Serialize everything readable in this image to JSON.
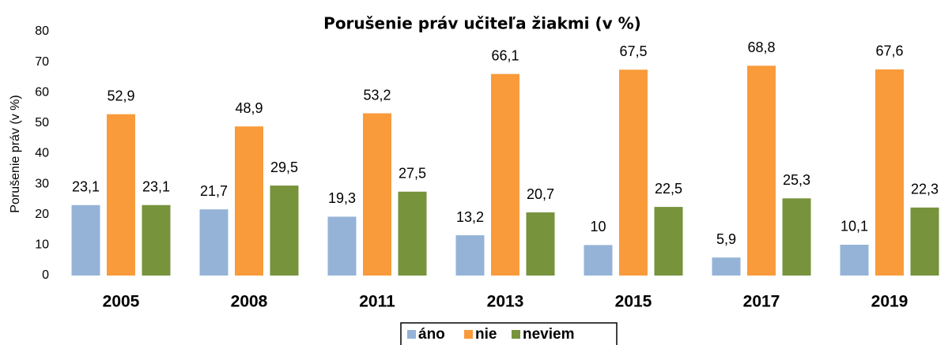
{
  "chart_data": {
    "type": "bar",
    "title": "Porušenie práv učiteľa žiakmi (v  %)",
    "y_label": "Porušenie práv (v  %)",
    "categories": [
      "2005",
      "2008",
      "2011",
      "2013",
      "2015",
      "2017",
      "2019"
    ],
    "series": [
      {
        "name": "áno",
        "color": "#95b3d7",
        "values": [
          23.1,
          21.7,
          19.3,
          13.2,
          10,
          5.9,
          10.1
        ],
        "value_labels": [
          "23,1",
          "21,7",
          "19,3",
          "13,2",
          "10",
          "5,9",
          "10,1"
        ]
      },
      {
        "name": "nie",
        "color": "#f99b3a",
        "values": [
          52.9,
          48.9,
          53.2,
          66.1,
          67.5,
          68.8,
          67.6
        ],
        "value_labels": [
          "52,9",
          "48,9",
          "53,2",
          "66,1",
          "67,5",
          "68,8",
          "67,6"
        ]
      },
      {
        "name": "neviem",
        "color": "#77933c",
        "values": [
          23.1,
          29.5,
          27.5,
          20.7,
          22.5,
          25.3,
          22.3
        ],
        "value_labels": [
          "23,1",
          "29,5",
          "27,5",
          "20,7",
          "22,5",
          "25,3",
          "22,3"
        ]
      }
    ],
    "ylim": [
      0,
      80
    ],
    "yticks": [
      0,
      10,
      20,
      30,
      40,
      50,
      60,
      70,
      80
    ],
    "grid": false,
    "legend": "bottom"
  }
}
